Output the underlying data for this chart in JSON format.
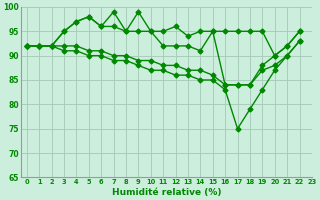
{
  "xlabel": "Humidité relative (%)",
  "xlim": [
    -0.5,
    23
  ],
  "ylim": [
    65,
    100
  ],
  "yticks": [
    65,
    70,
    75,
    80,
    85,
    90,
    95,
    100
  ],
  "xticks": [
    0,
    1,
    2,
    3,
    4,
    5,
    6,
    7,
    8,
    9,
    10,
    11,
    12,
    13,
    14,
    15,
    16,
    17,
    18,
    19,
    20,
    21,
    22,
    23
  ],
  "xtick_labels": [
    "0",
    "1",
    "2",
    "3",
    "4",
    "5",
    "6",
    "7",
    "8",
    "9",
    "10",
    "11",
    "12",
    "13",
    "14",
    "15",
    "16",
    "17",
    "18",
    "19",
    "20",
    "21",
    "22",
    "23"
  ],
  "bg_color": "#cceedd",
  "grid_color": "#aaccbb",
  "line_color": "#008800",
  "line_width": 1.0,
  "marker": "D",
  "marker_size": 2.5,
  "series": [
    [
      92,
      92,
      92,
      95,
      97,
      98,
      96,
      99,
      95,
      99,
      95,
      95,
      96,
      94,
      95,
      95,
      95,
      95,
      95,
      95,
      90,
      92,
      95
    ],
    [
      92,
      92,
      92,
      95,
      97,
      98,
      96,
      96,
      95,
      95,
      95,
      92,
      92,
      92,
      91,
      95,
      84,
      84,
      84,
      88,
      90,
      92,
      95
    ],
    [
      92,
      92,
      92,
      92,
      92,
      91,
      91,
      90,
      90,
      89,
      89,
      88,
      88,
      87,
      87,
      86,
      84,
      84,
      84,
      87,
      88,
      90,
      93
    ],
    [
      92,
      92,
      92,
      91,
      91,
      90,
      90,
      89,
      89,
      88,
      87,
      87,
      86,
      86,
      85,
      85,
      83,
      75,
      79,
      83,
      87,
      90,
      93
    ]
  ]
}
